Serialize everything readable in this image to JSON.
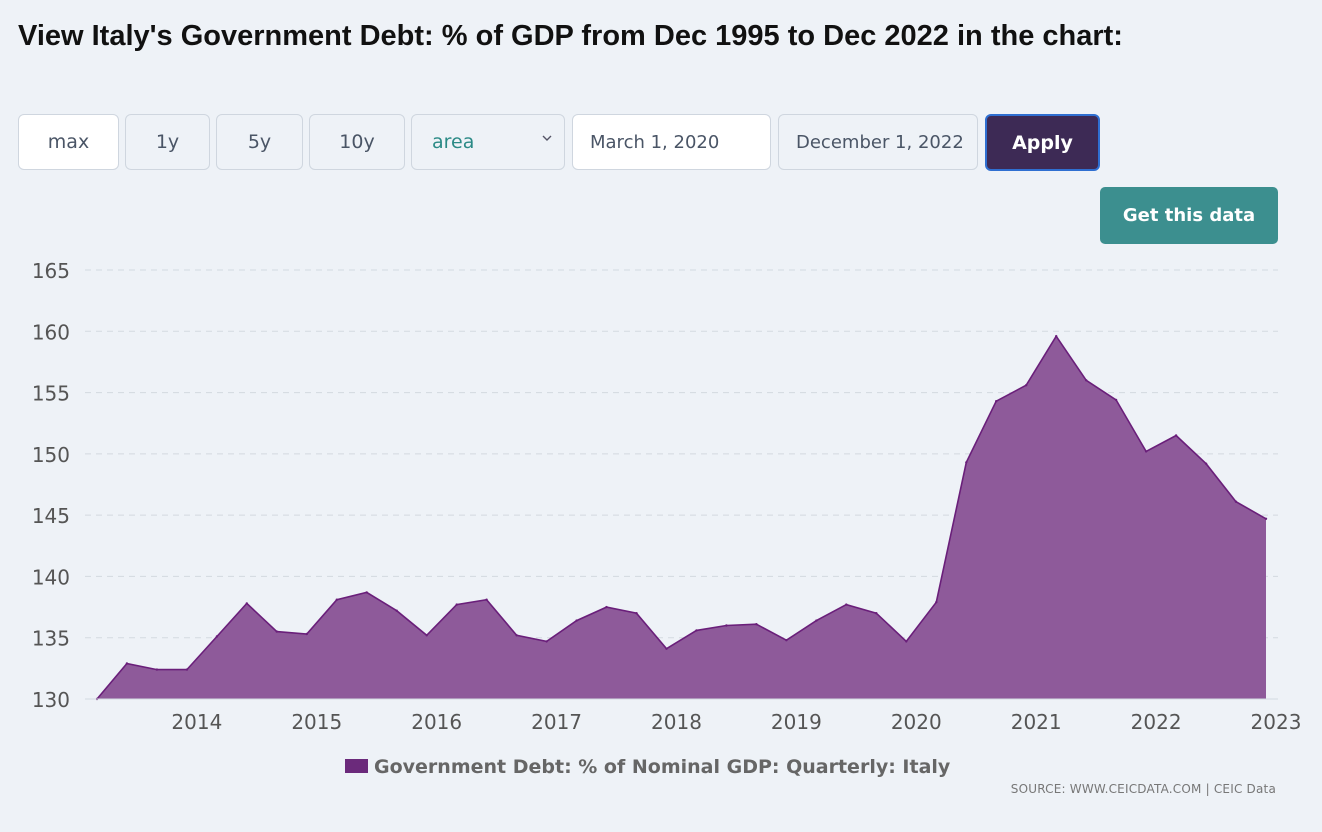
{
  "page": {
    "title": "View Italy's Government Debt: % of GDP from Dec 1995 to Dec 2022 in the chart:"
  },
  "controls": {
    "range_buttons": [
      "max",
      "1y",
      "5y",
      "10y"
    ],
    "active_range": "max",
    "chart_type_select": "area",
    "start_date": "March 1, 2020",
    "end_date": "December 1, 2022",
    "apply_label": "Apply",
    "get_data_label": "Get this data"
  },
  "colors": {
    "series_fill": "#8e5a9a",
    "series_line": "#6a1f7a",
    "legend_swatch": "#6b2a7b",
    "apply_bg": "#3d2a55",
    "get_data_bg": "#3c8f8f"
  },
  "icons": {
    "select_chevron": "chevron-down-icon"
  },
  "chart_data": {
    "type": "area",
    "title": "",
    "xlabel": "",
    "ylabel": "",
    "ylim": [
      130,
      165
    ],
    "y_ticks": [
      130,
      135,
      140,
      145,
      150,
      155,
      160,
      165
    ],
    "x_ticks": [
      "2014",
      "2015",
      "2016",
      "2017",
      "2018",
      "2019",
      "2020",
      "2021",
      "2022",
      "2023"
    ],
    "grid": true,
    "legend_position": "bottom",
    "series": [
      {
        "name": "Government Debt: % of Nominal GDP: Quarterly: Italy",
        "x": [
          "2013-03",
          "2013-06",
          "2013-09",
          "2013-12",
          "2014-03",
          "2014-06",
          "2014-09",
          "2014-12",
          "2015-03",
          "2015-06",
          "2015-09",
          "2015-12",
          "2016-03",
          "2016-06",
          "2016-09",
          "2016-12",
          "2017-03",
          "2017-06",
          "2017-09",
          "2017-12",
          "2018-03",
          "2018-06",
          "2018-09",
          "2018-12",
          "2019-03",
          "2019-06",
          "2019-09",
          "2019-12",
          "2020-03",
          "2020-06",
          "2020-09",
          "2020-12",
          "2021-03",
          "2021-06",
          "2021-09",
          "2021-12",
          "2022-03",
          "2022-06",
          "2022-09",
          "2022-12"
        ],
        "values": [
          130.0,
          132.9,
          132.4,
          132.4,
          135.1,
          137.8,
          135.5,
          135.3,
          138.1,
          138.7,
          137.2,
          135.2,
          137.7,
          138.1,
          135.2,
          134.7,
          136.4,
          137.5,
          137.0,
          134.1,
          135.6,
          136.0,
          136.1,
          134.8,
          136.4,
          137.7,
          137.0,
          134.7,
          137.9,
          149.3,
          154.3,
          155.6,
          159.6,
          156.0,
          154.4,
          150.2,
          151.5,
          149.2,
          146.1,
          144.7
        ]
      }
    ]
  },
  "source": "SOURCE: WWW.CEICDATA.COM | CEIC Data"
}
